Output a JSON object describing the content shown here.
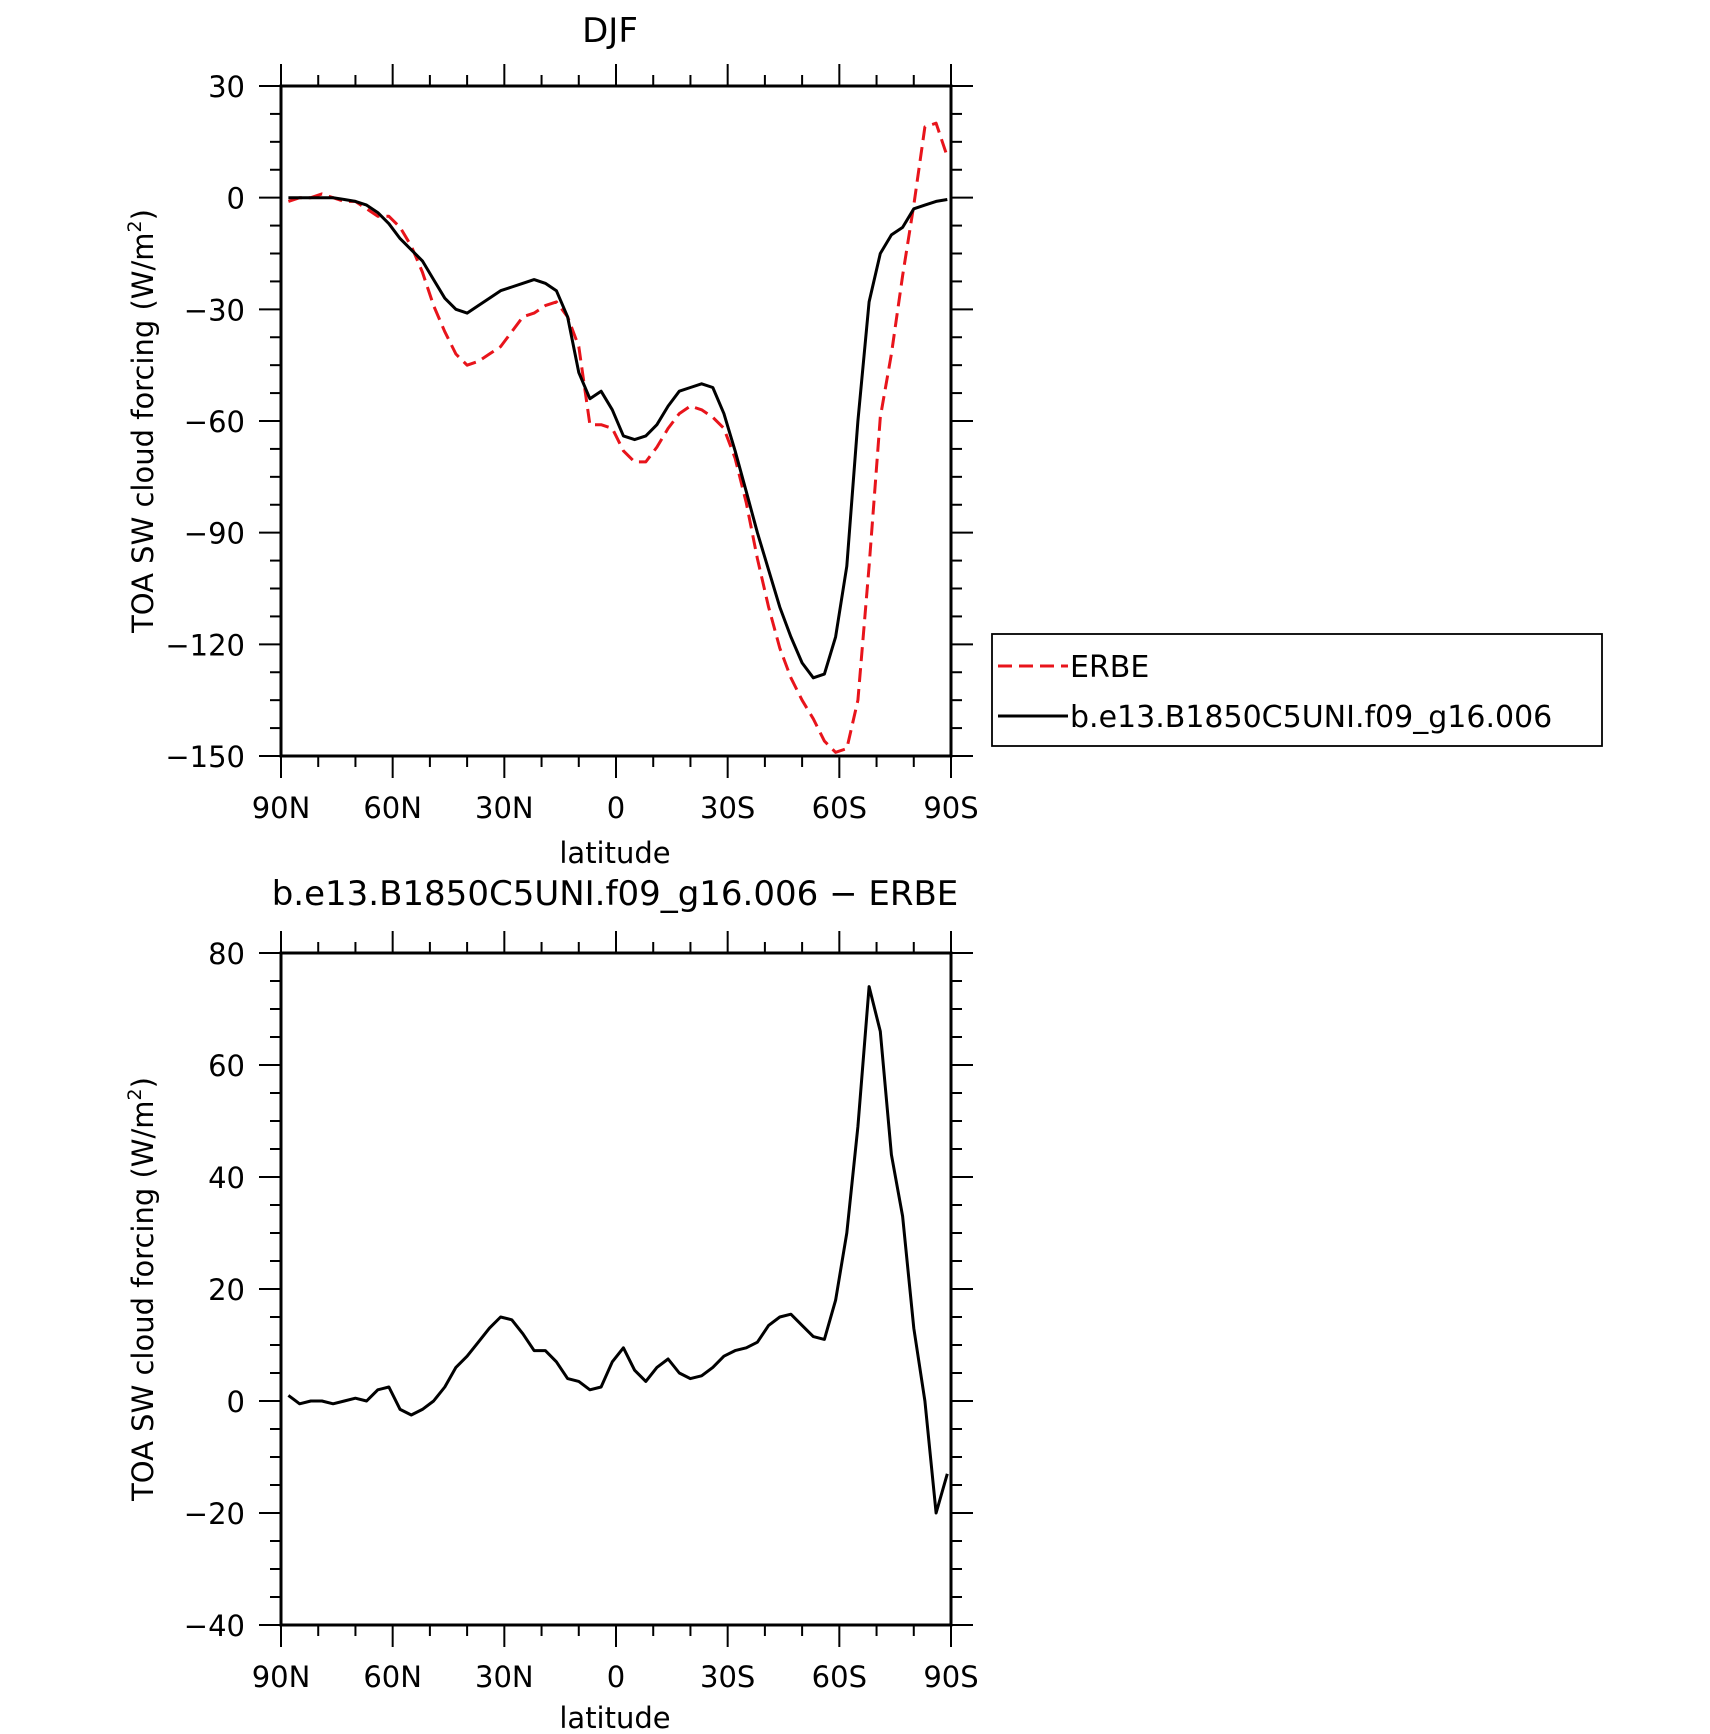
{
  "chart_data": [
    {
      "type": "line",
      "title": "DJF",
      "xlabel": "latitude",
      "ylabel": "TOA SW cloud forcing (W/m²)",
      "ylabel_parts": [
        "TOA SW cloud forcing (W/m",
        "2",
        ")"
      ],
      "xlim": [
        90,
        -90
      ],
      "ylim": [
        -150,
        30
      ],
      "xticks": [
        90,
        60,
        30,
        0,
        -30,
        -60,
        -90
      ],
      "xtick_labels": [
        "90N",
        "60N",
        "30N",
        "0",
        "30S",
        "60S",
        "90S"
      ],
      "yticks": [
        30,
        0,
        -30,
        -60,
        -90,
        -120,
        -150
      ],
      "ytick_labels": [
        "30",
        "0",
        "−30",
        "−60",
        "−90",
        "−120",
        "−150"
      ],
      "legend": "right",
      "series": [
        {
          "name": "ERBE",
          "color": "#e8141b",
          "dash": "dashed",
          "x": [
            88,
            85,
            82,
            79,
            76,
            73,
            70,
            67,
            64,
            61,
            58,
            55,
            52,
            49,
            46,
            43,
            40,
            37,
            34,
            31,
            28,
            25,
            22,
            19,
            16,
            13,
            10,
            7,
            4,
            1,
            -2,
            -5,
            -8,
            -11,
            -14,
            -17,
            -20,
            -23,
            -26,
            -29,
            -32,
            -35,
            -38,
            -41,
            -44,
            -47,
            -50,
            -53,
            -56,
            -59,
            -62,
            -65,
            -68,
            -71,
            -74,
            -77,
            -80,
            -83,
            -86,
            -89
          ],
          "y": [
            -1,
            0,
            0,
            1,
            0,
            -1,
            -1,
            -3,
            -5,
            -5,
            -8,
            -13,
            -20,
            -29,
            -36,
            -42,
            -45,
            -44,
            -42,
            -40,
            -36,
            -32,
            -31,
            -29,
            -28,
            -32,
            -40,
            -61,
            -61,
            -62,
            -68,
            -71,
            -71,
            -67,
            -62,
            -58,
            -56,
            -57,
            -59,
            -62,
            -70,
            -82,
            -97,
            -110,
            -121,
            -129,
            -135,
            -140,
            -146,
            -149,
            -148,
            -135,
            -99,
            -59,
            -42,
            -21,
            -2,
            19,
            20,
            11
          ]
        },
        {
          "name": "b.e13.B1850C5UNI.f09_g16.006",
          "color": "#000000",
          "dash": "solid",
          "x": [
            88,
            85,
            82,
            79,
            76,
            73,
            70,
            67,
            64,
            61,
            58,
            55,
            52,
            49,
            46,
            43,
            40,
            37,
            34,
            31,
            28,
            25,
            22,
            19,
            16,
            13,
            10,
            7,
            4,
            1,
            -2,
            -5,
            -8,
            -11,
            -14,
            -17,
            -20,
            -23,
            -26,
            -29,
            -32,
            -35,
            -38,
            -41,
            -44,
            -47,
            -50,
            -53,
            -56,
            -59,
            -62,
            -65,
            -68,
            -71,
            -74,
            -77,
            -80,
            -83,
            -86,
            -89
          ],
          "y": [
            0,
            0,
            0,
            0,
            0,
            -0.5,
            -1,
            -2,
            -4,
            -7,
            -11,
            -14,
            -17,
            -22,
            -27,
            -30,
            -31,
            -29,
            -27,
            -25,
            -24,
            -23,
            -22,
            -23,
            -25,
            -32,
            -47,
            -54,
            -52,
            -57,
            -64,
            -65,
            -64,
            -61,
            -56,
            -52,
            -51,
            -50,
            -51,
            -58,
            -68,
            -79,
            -90,
            -100,
            -110,
            -118,
            -125,
            -129,
            -128,
            -118,
            -99,
            -60,
            -28,
            -15,
            -10,
            -8,
            -3,
            -2,
            -1,
            -0.5
          ]
        }
      ]
    },
    {
      "type": "line",
      "title": "b.e13.B1850C5UNI.f09_g16.006 − ERBE",
      "xlabel": "latitude",
      "ylabel": "TOA SW cloud forcing (W/m²)",
      "ylabel_parts": [
        "TOA SW cloud forcing (W/m",
        "2",
        ")"
      ],
      "xlim": [
        90,
        -90
      ],
      "ylim": [
        -40,
        80
      ],
      "xticks": [
        90,
        60,
        30,
        0,
        -30,
        -60,
        -90
      ],
      "xtick_labels": [
        "90N",
        "60N",
        "30N",
        "0",
        "30S",
        "60S",
        "90S"
      ],
      "yticks": [
        80,
        60,
        40,
        20,
        0,
        -20,
        -40
      ],
      "ytick_labels": [
        "80",
        "60",
        "40",
        "20",
        "0",
        "−20",
        "−40"
      ],
      "series": [
        {
          "color": "#000000",
          "dash": "solid",
          "x": [
            88,
            85,
            82,
            79,
            76,
            73,
            70,
            67,
            64,
            61,
            58,
            55,
            52,
            49,
            46,
            43,
            40,
            37,
            34,
            31,
            28,
            25,
            22,
            19,
            16,
            13,
            10,
            7,
            4,
            1,
            -2,
            -5,
            -8,
            -11,
            -14,
            -17,
            -20,
            -23,
            -26,
            -29,
            -32,
            -35,
            -38,
            -41,
            -44,
            -47,
            -50,
            -53,
            -56,
            -59,
            -62,
            -65,
            -68,
            -71,
            -74,
            -77,
            -80,
            -83,
            -86,
            -89
          ],
          "y": [
            1,
            -0.5,
            0,
            0,
            -0.5,
            0,
            0.5,
            0,
            2,
            2.5,
            -1.5,
            -2.5,
            -1.5,
            0,
            2.5,
            6,
            8,
            10.5,
            13,
            15,
            14.5,
            12,
            9,
            9,
            7,
            4,
            3.5,
            2,
            2.5,
            7,
            9.5,
            5.5,
            3.5,
            6,
            7.5,
            5,
            4,
            4.5,
            6,
            8,
            9,
            9.5,
            10.5,
            13.5,
            15,
            15.5,
            13.5,
            11.5,
            11,
            18,
            30,
            49,
            74,
            66,
            44,
            33,
            13,
            0,
            -20,
            -13
          ]
        }
      ]
    }
  ]
}
